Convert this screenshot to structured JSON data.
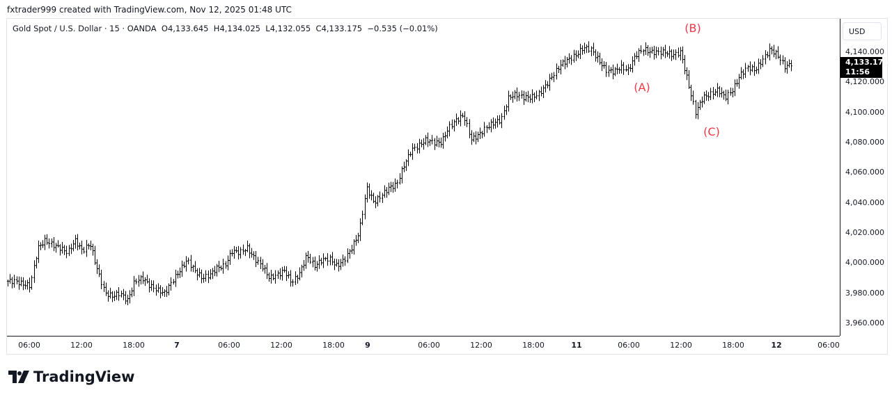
{
  "credit": "fxtrader999 created with TradingView.com, Nov 12, 2025 01:48 UTC",
  "legend": {
    "symbol": "Gold Spot / U.S. Dollar · 15 · OANDA",
    "open": "O4,133.645",
    "high": "H4,134.025",
    "low": "L4,132.055",
    "close": "C4,133.175",
    "change": "−0.535 (−0.01%)"
  },
  "currency": "USD",
  "last_price": {
    "price": "4,133.175",
    "countdown": "11:56"
  },
  "annotations": {
    "a": "(A)",
    "b": "(B)",
    "c": "(C)",
    "color": "#f23645"
  },
  "logo": "TradingView",
  "chart_data": {
    "type": "ohlc",
    "title": "Gold Spot / U.S. Dollar · 15 · OANDA",
    "ylim": [
      3950,
      4150
    ],
    "y_ticks": [
      "4,140.000",
      "4,120.000",
      "4,100.000",
      "4,080.000",
      "4,060.000",
      "4,040.000",
      "4,020.000",
      "4,000.000",
      "3,980.000",
      "3,960.000"
    ],
    "x_ticks": [
      "06:00",
      "12:00",
      "18:00",
      "7",
      "06:00",
      "12:00",
      "18:00",
      "9",
      "06:00",
      "12:00",
      "18:00",
      "11",
      "06:00",
      "12:00",
      "18:00",
      "12",
      "06:00"
    ],
    "grid": false,
    "approx_close_path": [
      3988,
      3988,
      3986,
      3985,
      4010,
      4015,
      4012,
      4010,
      4007,
      4015,
      4008,
      4013,
      3995,
      3980,
      3978,
      3980,
      3975,
      3988,
      3990,
      3985,
      3982,
      3980,
      3988,
      3995,
      4002,
      3995,
      3990,
      3992,
      3997,
      3998,
      4008,
      4007,
      4010,
      4003,
      3998,
      3990,
      3992,
      3995,
      3987,
      3993,
      4005,
      3998,
      4002,
      4003,
      3998,
      4002,
      4010,
      4020,
      4050,
      4040,
      4045,
      4050,
      4052,
      4065,
      4075,
      4078,
      4082,
      4080,
      4080,
      4090,
      4095,
      4098,
      4082,
      4085,
      4090,
      4093,
      4095,
      4110,
      4112,
      4110,
      4110,
      4112,
      4118,
      4125,
      4132,
      4135,
      4138,
      4143,
      4142,
      4135,
      4128,
      4127,
      4130,
      4128,
      4138,
      4142,
      4140,
      4140,
      4140,
      4138,
      4140,
      4120,
      4100,
      4110,
      4112,
      4115,
      4110,
      4115,
      4125,
      4130,
      4128,
      4135,
      4142,
      4138,
      4130,
      4133
    ]
  }
}
